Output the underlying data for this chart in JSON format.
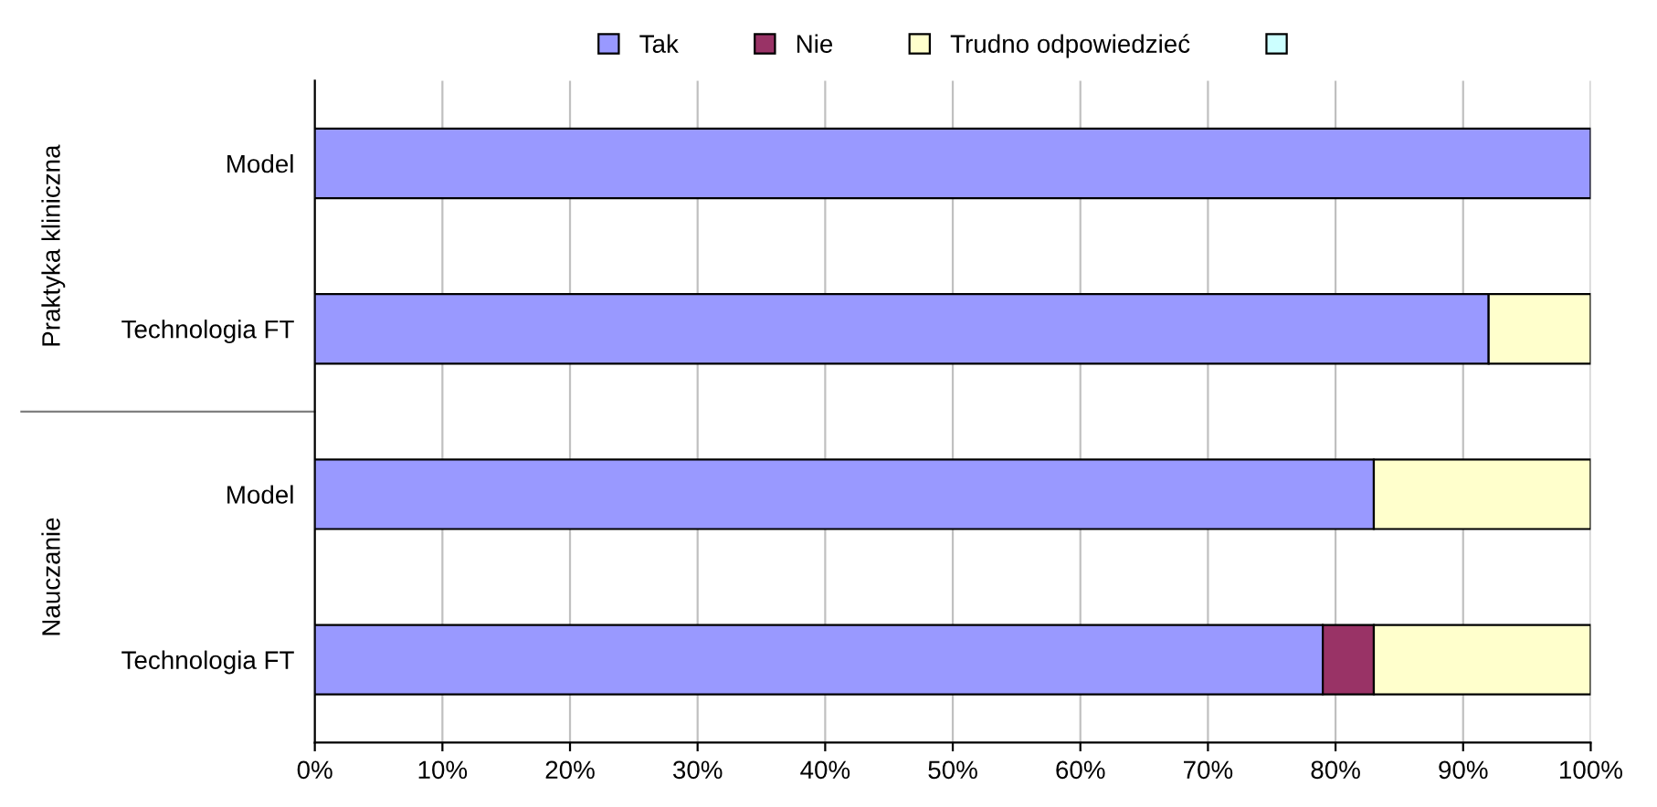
{
  "chart_data": {
    "type": "bar",
    "orientation": "horizontal",
    "stacked": true,
    "categories": [
      "Model",
      "Technologia FT",
      "Model",
      "Technologia FT"
    ],
    "series": [
      {
        "name": "Tak",
        "color": "#9999ff",
        "values": [
          100,
          92,
          83,
          79
        ]
      },
      {
        "name": "Nie",
        "color": "#993366",
        "values": [
          0,
          0,
          0,
          4
        ]
      },
      {
        "name": "Trudno odpowiedzieć",
        "color": "#ffffcc",
        "values": [
          0,
          8,
          17,
          17
        ]
      },
      {
        "color": "#ccffff",
        "values": [
          0,
          0,
          0,
          0
        ]
      }
    ],
    "xlim": [
      0,
      100
    ],
    "xticks": [
      {
        "value": 0,
        "label": "0%"
      },
      {
        "value": 10,
        "label": "10%"
      },
      {
        "value": 20,
        "label": "20%"
      },
      {
        "value": 30,
        "label": "30%"
      },
      {
        "value": 40,
        "label": "40%"
      },
      {
        "value": 50,
        "label": "50%"
      },
      {
        "value": 60,
        "label": "60%"
      },
      {
        "value": 70,
        "label": "70%"
      },
      {
        "value": 80,
        "label": "80%"
      },
      {
        "value": 90,
        "label": "90%"
      },
      {
        "value": 100,
        "label": "100%"
      }
    ],
    "grid": "x",
    "legend": "top",
    "annotations": [
      "Praktyka kliniczna",
      "Nauczanie"
    ]
  }
}
